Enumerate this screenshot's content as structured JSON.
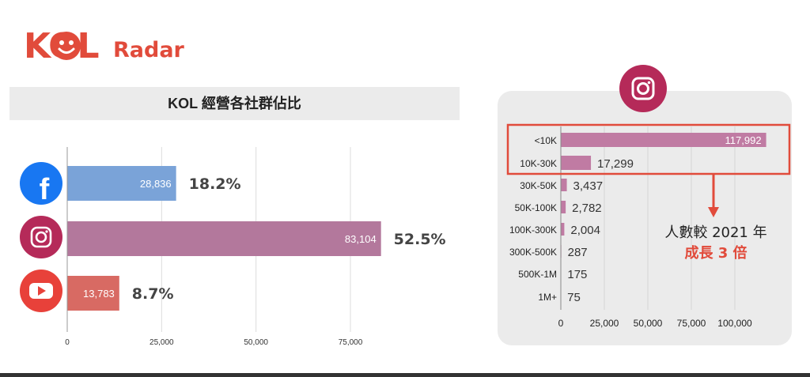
{
  "logo": {
    "kol": "KOL",
    "radar": "Radar"
  },
  "left_title": "KOL 經營各社群佔比",
  "callout": {
    "line1": "人數較 2021 年",
    "line2": "成長 3 倍"
  },
  "colors": {
    "brand": "#e14b3b",
    "facebook": "#7aa3d8",
    "instagram": "#b3789c",
    "youtube": "#d86a63",
    "ig_bar": "#c07ba3"
  },
  "chart_data": [
    {
      "type": "bar",
      "orientation": "horizontal",
      "title": "KOL 經營各社群佔比",
      "categories": [
        "facebook-icon",
        "instagram-icon",
        "youtube-icon"
      ],
      "values": [
        28836,
        83104,
        13783
      ],
      "value_labels": [
        "28,836",
        "83,104",
        "13,783"
      ],
      "percent_labels": [
        "18.2%",
        "52.5%",
        "8.7%"
      ],
      "xlim": [
        0,
        90000
      ],
      "xticks": [
        0,
        25000,
        50000,
        75000
      ],
      "xtick_labels": [
        "0",
        "25,000",
        "50,000",
        "75,000"
      ],
      "grid": true
    },
    {
      "type": "bar",
      "orientation": "horizontal",
      "categories": [
        "<10K",
        "10K-30K",
        "30K-50K",
        "50K-100K",
        "100K-300K",
        "300K-500K",
        "500K-1M",
        "1M+"
      ],
      "values": [
        117992,
        17299,
        3437,
        2782,
        2004,
        287,
        175,
        75
      ],
      "value_labels": [
        "117,992",
        "17,299",
        "3,437",
        "2,782",
        "2,004",
        "287",
        "175",
        "75"
      ],
      "xlim": [
        0,
        125000
      ],
      "xticks": [
        0,
        25000,
        50000,
        75000,
        100000
      ],
      "xtick_labels": [
        "0",
        "25,000",
        "50,000",
        "75,000",
        "100,000"
      ],
      "grid": true
    }
  ]
}
